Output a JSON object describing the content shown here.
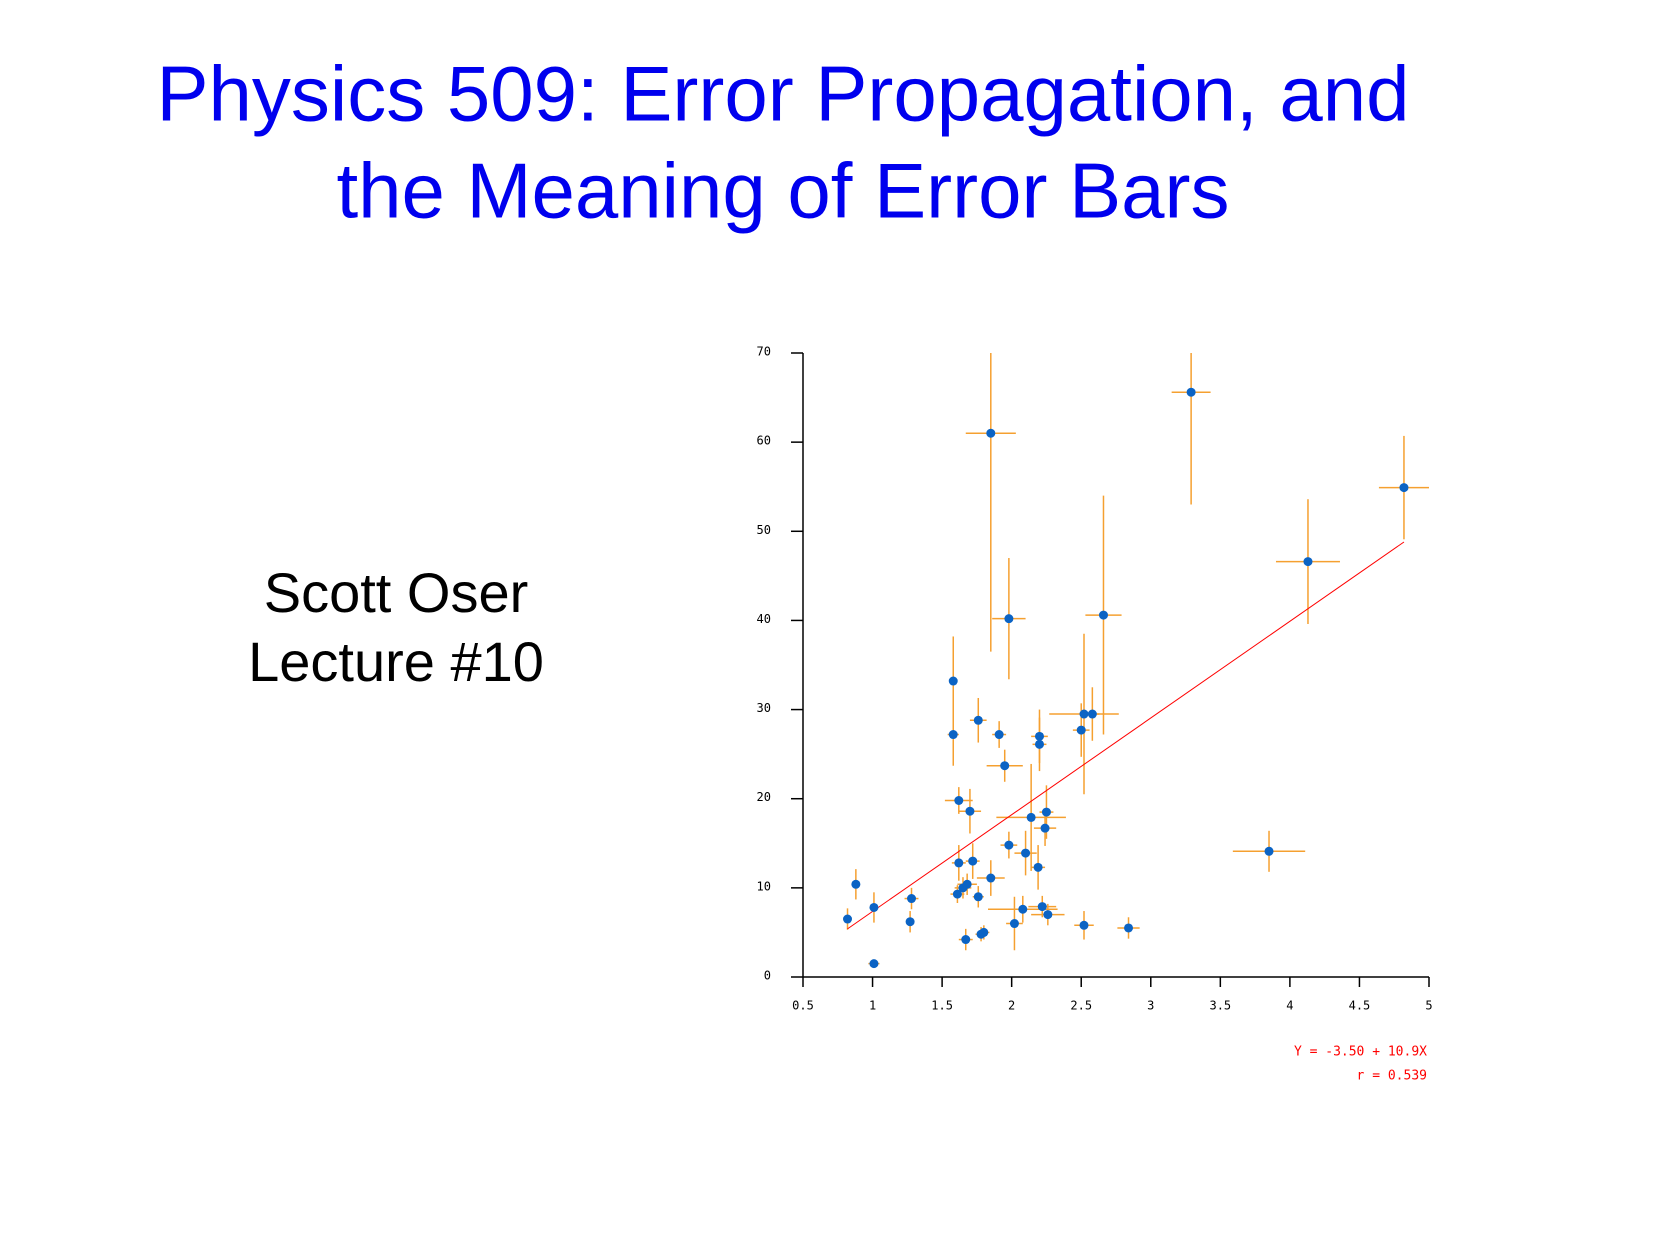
{
  "slide": {
    "title_lines": [
      "Physics 509: Error Propagation, and",
      "the Meaning of Error Bars"
    ],
    "author_lines": [
      "Scott Oser",
      "Lecture #10"
    ]
  },
  "chart_data": {
    "type": "scatter",
    "xlim": [
      0.5,
      5
    ],
    "ylim": [
      0,
      70
    ],
    "xticks": [
      0.5,
      1,
      1.5,
      2,
      2.5,
      3,
      3.5,
      4,
      4.5,
      5
    ],
    "yticks": [
      0,
      10,
      20,
      30,
      40,
      50,
      60,
      70
    ],
    "series": [
      {
        "color": "#0b63c4",
        "error_color": "#f5a030",
        "x": [
          0.82,
          0.88,
          1.01,
          1.01,
          1.27,
          1.28,
          1.58,
          1.58,
          1.62,
          1.61,
          1.62,
          1.65,
          1.67,
          1.68,
          1.7,
          1.72,
          1.76,
          1.76,
          1.78,
          1.8,
          1.85,
          1.85,
          1.91,
          1.95,
          1.98,
          1.98,
          2.02,
          2.08,
          2.1,
          2.14,
          2.19,
          2.2,
          2.2,
          2.22,
          2.24,
          2.25,
          2.26,
          2.5,
          2.52,
          2.52,
          2.58,
          2.66,
          2.84,
          3.29,
          3.85,
          4.13,
          4.82
        ],
        "y": [
          6.5,
          10.4,
          7.8,
          1.5,
          6.2,
          8.8,
          33.2,
          27.2,
          19.8,
          9.3,
          12.8,
          10.0,
          4.2,
          10.4,
          18.6,
          13.0,
          28.8,
          9.0,
          4.8,
          5.0,
          61.0,
          11.1,
          27.2,
          23.7,
          40.2,
          14.8,
          6.0,
          7.6,
          13.9,
          17.9,
          12.3,
          27.0,
          26.1,
          7.9,
          16.7,
          18.5,
          7.0,
          27.7,
          29.5,
          5.8,
          29.5,
          40.6,
          5.5,
          65.6,
          14.1,
          46.6,
          54.9
        ],
        "xerr": [
          0.03,
          0.03,
          0.03,
          0.04,
          0.03,
          0.05,
          0.03,
          0.04,
          0.1,
          0.05,
          0.05,
          0.06,
          0.05,
          0.07,
          0.08,
          0.05,
          0.06,
          0.04,
          0.04,
          0.04,
          0.18,
          0.1,
          0.05,
          0.13,
          0.12,
          0.06,
          0.06,
          0.25,
          0.08,
          0.25,
          0.05,
          0.06,
          0.05,
          0.1,
          0.08,
          0.05,
          0.12,
          0.06,
          0.25,
          0.07,
          0.05,
          0.13,
          0.08,
          0.14,
          0.26,
          0.23,
          0.18
        ],
        "yerr": [
          1.2,
          1.7,
          1.7,
          0.4,
          1.2,
          1.2,
          5.0,
          3.5,
          1.5,
          1.0,
          2.0,
          1.2,
          1.2,
          1.2,
          2.5,
          2.0,
          2.5,
          1.2,
          0.8,
          0.8,
          24.5,
          2.0,
          1.5,
          1.8,
          6.8,
          1.5,
          3.0,
          1.5,
          2.5,
          6.0,
          2.5,
          3.0,
          3.0,
          1.2,
          2.0,
          3.0,
          1.2,
          3.0,
          9.0,
          1.6,
          3.0,
          13.4,
          1.2,
          12.6,
          2.3,
          7.0,
          5.8
        ]
      }
    ],
    "fit_line": {
      "color": "#ff0000",
      "x": [
        0.82,
        4.82
      ],
      "y": [
        5.4,
        48.8
      ]
    },
    "annotations": [
      "Y = -3.50 + 10.9X",
      "r = 0.539"
    ]
  }
}
